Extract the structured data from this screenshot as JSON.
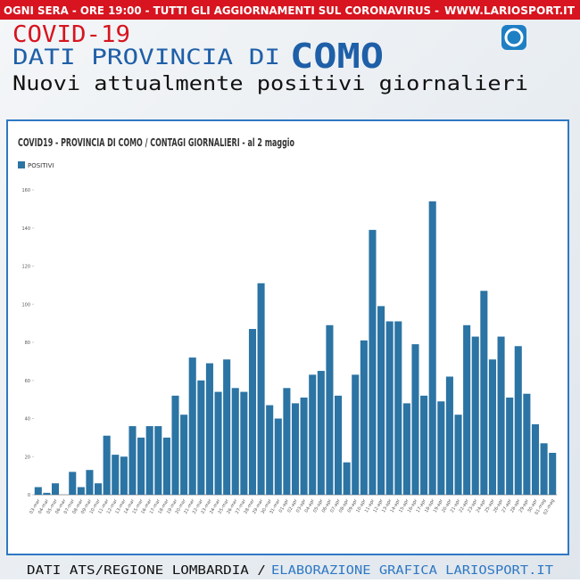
{
  "header": {
    "banner": "OGNI SERA - ORE 19:00 - TUTTI GLI AGGIORNAMENTI SUL CORONAVIRUS -",
    "banner_site": "WWW.LARIOSPORT.IT",
    "line1": "COVID-19",
    "line2": "DATI PROVINCIA DI",
    "line2_highlight": "COMO",
    "subtitle": "Nuovi attualmente positivi giornalieri"
  },
  "chart_data": {
    "type": "bar",
    "title": "COVID19 - PROVINCIA DI COMO / CONTAGI GIORNALIERI - al 2 maggio",
    "categories": [
      "03-mar",
      "04-mar",
      "05-mar",
      "06-mar",
      "07-mar",
      "08-mar",
      "09-mar",
      "10-mar",
      "11-mar",
      "12-mar",
      "13-mar",
      "14-mar",
      "15-mar",
      "16-mar",
      "17-mar",
      "18-mar",
      "19-mar",
      "20-mar",
      "21-mar",
      "22-mar",
      "23-mar",
      "24-mar",
      "25-mar",
      "26-mar",
      "27-mar",
      "28-mar",
      "29-mar",
      "30-mar",
      "31-mar",
      "01-apr",
      "02-apr",
      "03-apr",
      "04-apr",
      "05-apr",
      "06-apr",
      "07-apr",
      "08-apr",
      "09-apr",
      "10-apr",
      "11-apr",
      "12-apr",
      "13-apr",
      "14-apr",
      "15-apr",
      "16-apr",
      "17-apr",
      "18-apr",
      "19-apr",
      "20-apr",
      "21-apr",
      "22-apr",
      "23-apr",
      "24-apr",
      "25-apr",
      "26-apr",
      "27-apr",
      "28-apr",
      "29-apr",
      "30-apr",
      "01-mag",
      "02-mag"
    ],
    "series": [
      {
        "name": "POSITIVI",
        "color": "#2b74a4",
        "values": [
          4,
          1,
          6,
          0,
          12,
          4,
          13,
          6,
          31,
          21,
          20,
          36,
          30,
          36,
          36,
          30,
          52,
          42,
          72,
          60,
          69,
          54,
          71,
          56,
          54,
          87,
          111,
          47,
          40,
          56,
          48,
          51,
          63,
          65,
          89,
          52,
          17,
          63,
          81,
          139,
          99,
          91,
          91,
          48,
          79,
          52,
          154,
          49,
          62,
          42,
          89,
          83,
          107,
          71,
          83,
          51,
          78,
          53,
          37,
          27,
          22
        ]
      }
    ],
    "ylim": [
      0,
      160
    ],
    "yticks": [
      0,
      20,
      40,
      60,
      80,
      100,
      120,
      140,
      160
    ],
    "legend": "top-left"
  },
  "footer": {
    "source": "DATI ATS/REGIONE LOMBARDIA /",
    "credit": "ELABORAZIONE GRAFICA LARIOSPORT.IT"
  }
}
